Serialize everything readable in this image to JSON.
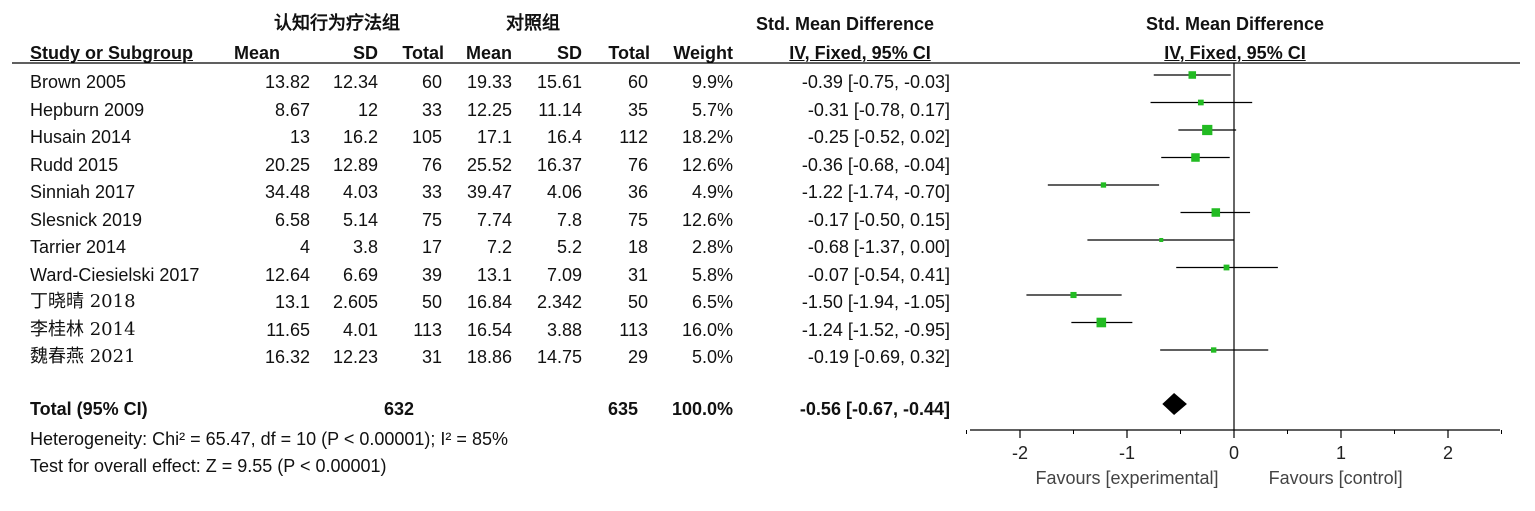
{
  "header": {
    "group_exp": "认知行为疗法组",
    "group_ctrl": "对照组",
    "smd_title": "Std. Mean Difference",
    "smd_method": "IV, Fixed, 95% CI",
    "plot_title": "Std. Mean Difference",
    "plot_method": "IV, Fixed, 95% CI",
    "col_study": "Study or Subgroup",
    "col_mean": "Mean",
    "col_sd": "SD",
    "col_total": "Total",
    "col_weight": "Weight"
  },
  "total_row": {
    "label": "Total (95% CI)",
    "exp_total": "632",
    "ctrl_total": "635",
    "weight": "100.0%",
    "ci": "-0.56 [-0.67, -0.44]"
  },
  "footer": {
    "heterogeneity": "Heterogeneity: Chi² = 65.47, df = 10 (P < 0.00001); I² = 85%",
    "overall": "Test for overall effect: Z = 9.55 (P < 0.00001)"
  },
  "colors": {
    "marker": "#22bb22",
    "diamond": "#000000"
  },
  "chart_data": {
    "type": "forest",
    "xlim": [
      -2.5,
      2.5
    ],
    "xticks": [
      "-2",
      "-1",
      "0",
      "1",
      "2"
    ],
    "xtick_values": [
      -2,
      -1,
      0,
      1,
      2
    ],
    "favours_left": "Favours [experimental]",
    "favours_right": "Favours [control]",
    "studies": [
      {
        "name": "Brown 2005",
        "exp_mean": "13.82",
        "exp_sd": "12.34",
        "exp_total": "60",
        "ctrl_mean": "19.33",
        "ctrl_sd": "15.61",
        "ctrl_total": "60",
        "weight": "9.9%",
        "weight_value": 9.9,
        "ci": "-0.39 [-0.75, -0.03]",
        "smd": -0.39,
        "lower": -0.75,
        "upper": -0.03
      },
      {
        "name": "Hepburn 2009",
        "exp_mean": "8.67",
        "exp_sd": "12",
        "exp_total": "33",
        "ctrl_mean": "12.25",
        "ctrl_sd": "11.14",
        "ctrl_total": "35",
        "weight": "5.7%",
        "weight_value": 5.7,
        "ci": "-0.31 [-0.78, 0.17]",
        "smd": -0.31,
        "lower": -0.78,
        "upper": 0.17
      },
      {
        "name": "Husain 2014",
        "exp_mean": "13",
        "exp_sd": "16.2",
        "exp_total": "105",
        "ctrl_mean": "17.1",
        "ctrl_sd": "16.4",
        "ctrl_total": "112",
        "weight": "18.2%",
        "weight_value": 18.2,
        "ci": "-0.25 [-0.52, 0.02]",
        "smd": -0.25,
        "lower": -0.52,
        "upper": 0.02
      },
      {
        "name": "Rudd 2015",
        "exp_mean": "20.25",
        "exp_sd": "12.89",
        "exp_total": "76",
        "ctrl_mean": "25.52",
        "ctrl_sd": "16.37",
        "ctrl_total": "76",
        "weight": "12.6%",
        "weight_value": 12.6,
        "ci": "-0.36 [-0.68, -0.04]",
        "smd": -0.36,
        "lower": -0.68,
        "upper": -0.04
      },
      {
        "name": "Sinniah 2017",
        "exp_mean": "34.48",
        "exp_sd": "4.03",
        "exp_total": "33",
        "ctrl_mean": "39.47",
        "ctrl_sd": "4.06",
        "ctrl_total": "36",
        "weight": "4.9%",
        "weight_value": 4.9,
        "ci": "-1.22 [-1.74, -0.70]",
        "smd": -1.22,
        "lower": -1.74,
        "upper": -0.7
      },
      {
        "name": "Slesnick 2019",
        "exp_mean": "6.58",
        "exp_sd": "5.14",
        "exp_total": "75",
        "ctrl_mean": "7.74",
        "ctrl_sd": "7.8",
        "ctrl_total": "75",
        "weight": "12.6%",
        "weight_value": 12.6,
        "ci": "-0.17 [-0.50, 0.15]",
        "smd": -0.17,
        "lower": -0.5,
        "upper": 0.15
      },
      {
        "name": "Tarrier 2014",
        "exp_mean": "4",
        "exp_sd": "3.8",
        "exp_total": "17",
        "ctrl_mean": "7.2",
        "ctrl_sd": "5.2",
        "ctrl_total": "18",
        "weight": "2.8%",
        "weight_value": 2.8,
        "ci": "-0.68 [-1.37, 0.00]",
        "smd": -0.68,
        "lower": -1.37,
        "upper": 0.0
      },
      {
        "name": "Ward-Ciesielski 2017",
        "exp_mean": "12.64",
        "exp_sd": "6.69",
        "exp_total": "39",
        "ctrl_mean": "13.1",
        "ctrl_sd": "7.09",
        "ctrl_total": "31",
        "weight": "5.8%",
        "weight_value": 5.8,
        "ci": "-0.07 [-0.54, 0.41]",
        "smd": -0.07,
        "lower": -0.54,
        "upper": 0.41
      },
      {
        "name": "丁晓晴 2018",
        "exp_mean": "13.1",
        "exp_sd": "2.605",
        "exp_total": "50",
        "ctrl_mean": "16.84",
        "ctrl_sd": "2.342",
        "ctrl_total": "50",
        "weight": "6.5%",
        "weight_value": 6.5,
        "ci": "-1.50 [-1.94, -1.05]",
        "smd": -1.5,
        "lower": -1.94,
        "upper": -1.05
      },
      {
        "name": "李桂林 2014",
        "exp_mean": "11.65",
        "exp_sd": "4.01",
        "exp_total": "113",
        "ctrl_mean": "16.54",
        "ctrl_sd": "3.88",
        "ctrl_total": "113",
        "weight": "16.0%",
        "weight_value": 16.0,
        "ci": "-1.24 [-1.52, -0.95]",
        "smd": -1.24,
        "lower": -1.52,
        "upper": -0.95
      },
      {
        "name": "魏春燕 2021",
        "exp_mean": "16.32",
        "exp_sd": "12.23",
        "exp_total": "31",
        "ctrl_mean": "18.86",
        "ctrl_sd": "14.75",
        "ctrl_total": "29",
        "weight": "5.0%",
        "weight_value": 5.0,
        "ci": "-0.19 [-0.69, 0.32]",
        "smd": -0.19,
        "lower": -0.69,
        "upper": 0.32
      }
    ],
    "pooled": {
      "smd": -0.56,
      "lower": -0.67,
      "upper": -0.44
    }
  }
}
